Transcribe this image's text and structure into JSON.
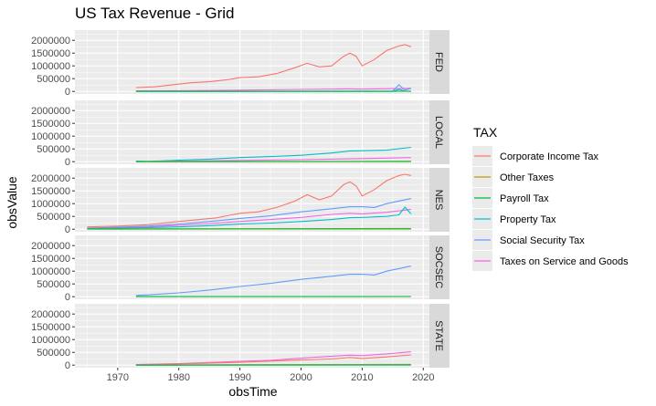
{
  "chart_data": {
    "type": "line",
    "title": "US Tax Revenue - Grid",
    "xlabel": "obsTime",
    "ylabel": "obsValue",
    "xlim": [
      1963,
      2021
    ],
    "ylim": [
      -100000,
      2400000
    ],
    "x_ticks": [
      1970,
      1980,
      1990,
      2000,
      2010,
      2020
    ],
    "y_ticks": [
      0,
      500000,
      1000000,
      1500000,
      2000000
    ],
    "grid": true,
    "legend_position": "right",
    "legend_title": "TAX",
    "series": [
      {
        "name": "Corporate Income Tax",
        "color": "#F8766D"
      },
      {
        "name": "Other Taxes",
        "color": "#B79F00"
      },
      {
        "name": "Payroll Tax",
        "color": "#00BA38"
      },
      {
        "name": "Property Tax",
        "color": "#00BFC4"
      },
      {
        "name": "Social Security Tax",
        "color": "#619CFF"
      },
      {
        "name": "Taxes on Service and Goods",
        "color": "#F564E3"
      }
    ],
    "panels": [
      {
        "name": "FED",
        "lines": [
          {
            "series": "Corporate Income Tax",
            "points": [
              [
                1973,
                150000
              ],
              [
                1976,
                180000
              ],
              [
                1979,
                260000
              ],
              [
                1982,
                340000
              ],
              [
                1985,
                380000
              ],
              [
                1988,
                460000
              ],
              [
                1990,
                540000
              ],
              [
                1993,
                570000
              ],
              [
                1996,
                700000
              ],
              [
                1999,
                930000
              ],
              [
                2001,
                1100000
              ],
              [
                2003,
                960000
              ],
              [
                2005,
                1000000
              ],
              [
                2007,
                1380000
              ],
              [
                2008,
                1500000
              ],
              [
                2009,
                1380000
              ],
              [
                2010,
                1000000
              ],
              [
                2012,
                1250000
              ],
              [
                2014,
                1600000
              ],
              [
                2016,
                1780000
              ],
              [
                2017,
                1830000
              ],
              [
                2018,
                1750000
              ]
            ]
          },
          {
            "series": "Taxes on Service and Goods",
            "points": [
              [
                1973,
                20000
              ],
              [
                1980,
                30000
              ],
              [
                1990,
                50000
              ],
              [
                2000,
                80000
              ],
              [
                2008,
                100000
              ],
              [
                2010,
                90000
              ],
              [
                2018,
                120000
              ]
            ]
          },
          {
            "series": "Social Security Tax",
            "points": [
              [
                1973,
                5000
              ],
              [
                2015,
                10000
              ],
              [
                2016,
                260000
              ],
              [
                2017,
                50000
              ],
              [
                2018,
                120000
              ]
            ]
          },
          {
            "series": "Property Tax",
            "points": [
              [
                1973,
                0
              ],
              [
                2015,
                0
              ],
              [
                2016,
                80000
              ],
              [
                2017,
                10000
              ],
              [
                2018,
                0
              ]
            ]
          },
          {
            "series": "Payroll Tax",
            "points": [
              [
                1973,
                5000
              ],
              [
                2018,
                8000
              ]
            ]
          }
        ]
      },
      {
        "name": "LOCAL",
        "lines": [
          {
            "series": "Property Tax",
            "points": [
              [
                1973,
                20000
              ],
              [
                1975,
                10000
              ],
              [
                1977,
                30000
              ],
              [
                1980,
                60000
              ],
              [
                1985,
                100000
              ],
              [
                1990,
                160000
              ],
              [
                1995,
                200000
              ],
              [
                2000,
                250000
              ],
              [
                2005,
                340000
              ],
              [
                2008,
                420000
              ],
              [
                2010,
                430000
              ],
              [
                2014,
                450000
              ],
              [
                2018,
                560000
              ]
            ]
          },
          {
            "series": "Taxes on Service and Goods",
            "points": [
              [
                1973,
                5000
              ],
              [
                1980,
                20000
              ],
              [
                1990,
                50000
              ],
              [
                2000,
                80000
              ],
              [
                2010,
                120000
              ],
              [
                2018,
                160000
              ]
            ]
          },
          {
            "series": "Other Taxes",
            "points": [
              [
                1973,
                3000
              ],
              [
                2018,
                15000
              ]
            ]
          },
          {
            "series": "Payroll Tax",
            "points": [
              [
                1973,
                0
              ],
              [
                2018,
                5000
              ]
            ]
          }
        ]
      },
      {
        "name": "NES",
        "lines": [
          {
            "series": "Corporate Income Tax",
            "points": [
              [
                1965,
                90000
              ],
              [
                1970,
                120000
              ],
              [
                1975,
                180000
              ],
              [
                1980,
                300000
              ],
              [
                1983,
                370000
              ],
              [
                1986,
                440000
              ],
              [
                1990,
                620000
              ],
              [
                1993,
                680000
              ],
              [
                1996,
                850000
              ],
              [
                1999,
                1100000
              ],
              [
                2001,
                1350000
              ],
              [
                2003,
                1150000
              ],
              [
                2005,
                1300000
              ],
              [
                2007,
                1750000
              ],
              [
                2008,
                1850000
              ],
              [
                2009,
                1700000
              ],
              [
                2010,
                1300000
              ],
              [
                2012,
                1550000
              ],
              [
                2014,
                1900000
              ],
              [
                2016,
                2100000
              ],
              [
                2017,
                2150000
              ],
              [
                2018,
                2100000
              ]
            ]
          },
          {
            "series": "Social Security Tax",
            "points": [
              [
                1965,
                40000
              ],
              [
                1970,
                80000
              ],
              [
                1975,
                120000
              ],
              [
                1980,
                200000
              ],
              [
                1985,
                300000
              ],
              [
                1990,
                420000
              ],
              [
                1995,
                520000
              ],
              [
                2000,
                680000
              ],
              [
                2005,
                800000
              ],
              [
                2008,
                880000
              ],
              [
                2010,
                880000
              ],
              [
                2012,
                850000
              ],
              [
                2014,
                1000000
              ],
              [
                2018,
                1200000
              ]
            ]
          },
          {
            "series": "Taxes on Service and Goods",
            "points": [
              [
                1965,
                40000
              ],
              [
                1970,
                60000
              ],
              [
                1975,
                90000
              ],
              [
                1980,
                150000
              ],
              [
                1985,
                220000
              ],
              [
                1990,
                300000
              ],
              [
                1995,
                380000
              ],
              [
                2000,
                460000
              ],
              [
                2005,
                580000
              ],
              [
                2008,
                620000
              ],
              [
                2010,
                600000
              ],
              [
                2014,
                660000
              ],
              [
                2018,
                780000
              ]
            ]
          },
          {
            "series": "Property Tax",
            "points": [
              [
                1965,
                30000
              ],
              [
                1970,
                40000
              ],
              [
                1975,
                60000
              ],
              [
                1980,
                90000
              ],
              [
                1985,
                140000
              ],
              [
                1990,
                200000
              ],
              [
                1995,
                240000
              ],
              [
                2000,
                300000
              ],
              [
                2005,
                380000
              ],
              [
                2008,
                450000
              ],
              [
                2010,
                460000
              ],
              [
                2014,
                500000
              ],
              [
                2016,
                560000
              ],
              [
                2017,
                860000
              ],
              [
                2018,
                600000
              ]
            ]
          },
          {
            "series": "Other Taxes",
            "points": [
              [
                1965,
                10000
              ],
              [
                2018,
                30000
              ]
            ]
          },
          {
            "series": "Payroll Tax",
            "points": [
              [
                1965,
                5000
              ],
              [
                2018,
                10000
              ]
            ]
          }
        ]
      },
      {
        "name": "SOCSEC",
        "lines": [
          {
            "series": "Social Security Tax",
            "points": [
              [
                1973,
                50000
              ],
              [
                1975,
                70000
              ],
              [
                1980,
                150000
              ],
              [
                1985,
                260000
              ],
              [
                1990,
                400000
              ],
              [
                1995,
                520000
              ],
              [
                2000,
                680000
              ],
              [
                2005,
                800000
              ],
              [
                2008,
                880000
              ],
              [
                2010,
                880000
              ],
              [
                2012,
                850000
              ],
              [
                2014,
                1000000
              ],
              [
                2016,
                1100000
              ],
              [
                2018,
                1200000
              ]
            ]
          },
          {
            "series": "Payroll Tax",
            "points": [
              [
                1973,
                5000
              ],
              [
                2018,
                8000
              ]
            ]
          }
        ]
      },
      {
        "name": "STATE",
        "lines": [
          {
            "series": "Taxes on Service and Goods",
            "points": [
              [
                1973,
                20000
              ],
              [
                1980,
                60000
              ],
              [
                1990,
                150000
              ],
              [
                1995,
                190000
              ],
              [
                2000,
                270000
              ],
              [
                2005,
                350000
              ],
              [
                2008,
                390000
              ],
              [
                2010,
                370000
              ],
              [
                2014,
                440000
              ],
              [
                2018,
                520000
              ]
            ]
          },
          {
            "series": "Corporate Income Tax",
            "points": [
              [
                1973,
                10000
              ],
              [
                1980,
                50000
              ],
              [
                1990,
                110000
              ],
              [
                2000,
                200000
              ],
              [
                2005,
                240000
              ],
              [
                2008,
                300000
              ],
              [
                2010,
                260000
              ],
              [
                2014,
                320000
              ],
              [
                2018,
                400000
              ]
            ]
          },
          {
            "series": "Property Tax",
            "points": [
              [
                1973,
                5000
              ],
              [
                2018,
                20000
              ]
            ]
          },
          {
            "series": "Other Taxes",
            "points": [
              [
                1973,
                5000
              ],
              [
                2018,
                30000
              ]
            ]
          },
          {
            "series": "Social Security Tax",
            "points": [
              [
                1973,
                3000
              ],
              [
                2018,
                15000
              ]
            ]
          },
          {
            "series": "Payroll Tax",
            "points": [
              [
                1973,
                0
              ],
              [
                2018,
                5000
              ]
            ]
          }
        ]
      }
    ]
  }
}
